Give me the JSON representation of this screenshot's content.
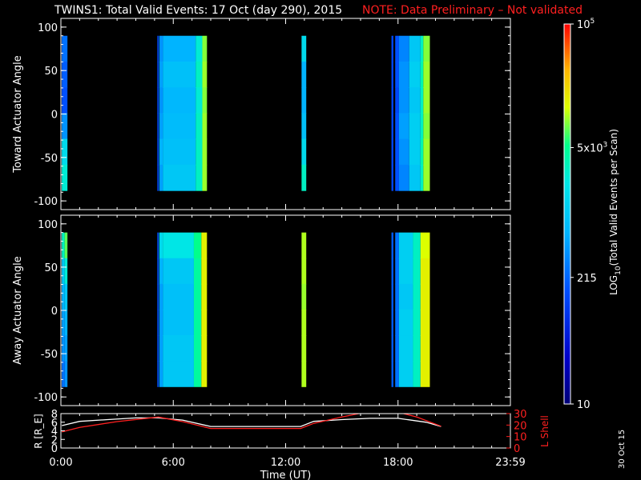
{
  "title": {
    "main": "TWINS1: Total Valid Events: 17 Oct (day 290), 2015",
    "note": "NOTE: Data Preliminary – Not validated"
  },
  "stamp": "30 Oct 15",
  "colors": {
    "background": "#000000",
    "note": "#ff2020",
    "r_line": "#ffffff",
    "l_shell_line": "#ff2020"
  },
  "chart_data": [
    {
      "type": "heatmap",
      "ylabel": "Toward Actuator Angle",
      "ylim": [
        -110,
        110
      ],
      "yticks": [
        "100",
        "50",
        "0",
        "-50",
        "-100"
      ],
      "ytick_values": [
        100,
        50,
        0,
        -50,
        -100
      ],
      "y_data_range": [
        -88,
        90
      ],
      "xlim_hours": [
        0,
        24
      ],
      "segments": [
        {
          "start": 0.05,
          "end": 0.35,
          "levels": [
            0.35,
            0.32,
            0.3,
            0.4,
            0.55,
            0.6
          ]
        },
        {
          "start": 5.15,
          "end": 5.22,
          "levels": [
            0.28,
            0.28,
            0.28,
            0.28,
            0.28,
            0.28
          ]
        },
        {
          "start": 5.25,
          "end": 5.45,
          "levels": [
            0.4,
            0.42,
            0.4,
            0.42,
            0.45,
            0.42
          ]
        },
        {
          "start": 5.45,
          "end": 7.2,
          "levels": [
            0.45,
            0.48,
            0.46,
            0.47,
            0.48,
            0.5
          ]
        },
        {
          "start": 7.2,
          "end": 7.55,
          "levels": [
            0.6,
            0.62,
            0.6,
            0.62,
            0.62,
            0.62
          ]
        },
        {
          "start": 7.55,
          "end": 7.8,
          "levels": [
            0.74,
            0.75,
            0.74,
            0.75,
            0.75,
            0.75
          ]
        },
        {
          "start": 12.85,
          "end": 13.1,
          "levels": [
            0.55,
            0.45,
            0.45,
            0.48,
            0.55,
            0.62
          ]
        },
        {
          "start": 17.65,
          "end": 17.75,
          "levels": [
            0.28,
            0.28,
            0.28,
            0.28,
            0.28,
            0.28
          ]
        },
        {
          "start": 17.85,
          "end": 18.05,
          "levels": [
            0.3,
            0.3,
            0.28,
            0.3,
            0.3,
            0.3
          ]
        },
        {
          "start": 18.05,
          "end": 18.6,
          "levels": [
            0.38,
            0.4,
            0.4,
            0.42,
            0.4,
            0.38
          ]
        },
        {
          "start": 18.6,
          "end": 19.2,
          "levels": [
            0.5,
            0.52,
            0.5,
            0.52,
            0.52,
            0.5
          ]
        },
        {
          "start": 19.2,
          "end": 19.35,
          "levels": [
            0.62,
            0.64,
            0.62,
            0.62,
            0.64,
            0.62
          ]
        },
        {
          "start": 19.35,
          "end": 19.7,
          "levels": [
            0.74,
            0.75,
            0.75,
            0.74,
            0.75,
            0.75
          ]
        }
      ]
    },
    {
      "type": "heatmap",
      "ylabel": "Away Actuator Angle",
      "ylim": [
        -110,
        110
      ],
      "yticks": [
        "100",
        "50",
        "0",
        "-50",
        "-100"
      ],
      "ytick_values": [
        100,
        50,
        0,
        -50,
        -100
      ],
      "y_data_range": [
        -88,
        90
      ],
      "xlim_hours": [
        0,
        24
      ],
      "segments": [
        {
          "start": 0.05,
          "end": 0.2,
          "levels": [
            0.62,
            0.5,
            0.45,
            0.42,
            0.4,
            0.35
          ]
        },
        {
          "start": 0.2,
          "end": 0.35,
          "levels": [
            0.72,
            0.6,
            0.5,
            0.45,
            0.42,
            0.4
          ]
        },
        {
          "start": 5.15,
          "end": 5.22,
          "levels": [
            0.3,
            0.3,
            0.3,
            0.3,
            0.3,
            0.3
          ]
        },
        {
          "start": 5.25,
          "end": 5.45,
          "levels": [
            0.55,
            0.45,
            0.42,
            0.42,
            0.42,
            0.42
          ]
        },
        {
          "start": 5.45,
          "end": 7.1,
          "levels": [
            0.58,
            0.5,
            0.48,
            0.48,
            0.5,
            0.5
          ]
        },
        {
          "start": 7.1,
          "end": 7.5,
          "levels": [
            0.68,
            0.66,
            0.66,
            0.66,
            0.66,
            0.66
          ]
        },
        {
          "start": 7.5,
          "end": 7.8,
          "levels": [
            0.8,
            0.8,
            0.8,
            0.8,
            0.8,
            0.8
          ]
        },
        {
          "start": 12.85,
          "end": 13.1,
          "levels": [
            0.76,
            0.76,
            0.75,
            0.76,
            0.76,
            0.76
          ]
        },
        {
          "start": 17.65,
          "end": 17.75,
          "levels": [
            0.32,
            0.32,
            0.32,
            0.32,
            0.32,
            0.32
          ]
        },
        {
          "start": 17.85,
          "end": 18.05,
          "levels": [
            0.35,
            0.35,
            0.35,
            0.35,
            0.35,
            0.35
          ]
        },
        {
          "start": 18.05,
          "end": 18.8,
          "levels": [
            0.52,
            0.52,
            0.5,
            0.52,
            0.52,
            0.52
          ]
        },
        {
          "start": 18.8,
          "end": 19.2,
          "levels": [
            0.62,
            0.62,
            0.62,
            0.62,
            0.62,
            0.62
          ]
        },
        {
          "start": 19.2,
          "end": 19.7,
          "levels": [
            0.78,
            0.8,
            0.8,
            0.8,
            0.8,
            0.8
          ]
        }
      ]
    },
    {
      "type": "line",
      "xlabel": "Time (UT)",
      "xticks": [
        "0:00",
        "6:00",
        "12:00",
        "18:00",
        "23:59"
      ],
      "xtick_hours": [
        0,
        6,
        12,
        18,
        24
      ],
      "ylabel_left": "R [R_E]",
      "ylim_left": [
        0,
        8
      ],
      "yticks_left": [
        "0",
        "2",
        "4",
        "6",
        "8"
      ],
      "ylabel_right": "L Shell",
      "ylim_right": [
        0,
        30
      ],
      "yticks_right": [
        "0",
        "10",
        "20",
        "30"
      ],
      "series": [
        {
          "axis": "left",
          "x": [
            0.05,
            1.0,
            2.5,
            4.0,
            5.2,
            6.5,
            8.0,
            12.8,
            13.5,
            15.0,
            16.5,
            18.0,
            19.5,
            20.3
          ],
          "y": [
            5.2,
            6.2,
            6.6,
            7.0,
            7.0,
            6.5,
            5.0,
            5.0,
            6.2,
            6.6,
            6.9,
            6.9,
            6.0,
            5.0
          ]
        },
        {
          "axis": "right",
          "x": [
            0.05,
            1.0,
            3.0,
            5.2,
            6.5,
            8.0,
            12.8,
            13.5,
            15.0,
            15.9,
            16.2,
            18.0,
            18.3,
            19.0,
            20.3
          ],
          "y": [
            14.0,
            18.0,
            23.0,
            27.0,
            23.0,
            17.0,
            17.0,
            21.5,
            27.0,
            30.0,
            33.0,
            33.0,
            30.0,
            27.0,
            19.0
          ]
        }
      ]
    },
    {
      "type": "heatmap",
      "role": "colorbar",
      "ylabel": "LOG10(Total Valid Events per Scan)",
      "ylabel_base": "LOG",
      "ylabel_sub": "10",
      "ylabel_rest": "(Total Valid Events per Scan)",
      "range": [
        10,
        100000
      ],
      "ticks": [
        {
          "label": "10",
          "value": 10
        },
        {
          "label": "215",
          "value": 215
        },
        {
          "label": "5×10³",
          "value": 5000
        },
        {
          "label": "10⁵",
          "value": 100000
        }
      ],
      "tick_parts": [
        {
          "label": "10",
          "value": 10,
          "base": "10",
          "sup": ""
        },
        {
          "label": "215",
          "value": 215,
          "base": "215",
          "sup": ""
        },
        {
          "label": "5×10³",
          "value": 5000,
          "base": "5x10",
          "sup": "3"
        },
        {
          "label": "10⁵",
          "value": 100000,
          "base": "10",
          "sup": "5"
        }
      ]
    }
  ]
}
